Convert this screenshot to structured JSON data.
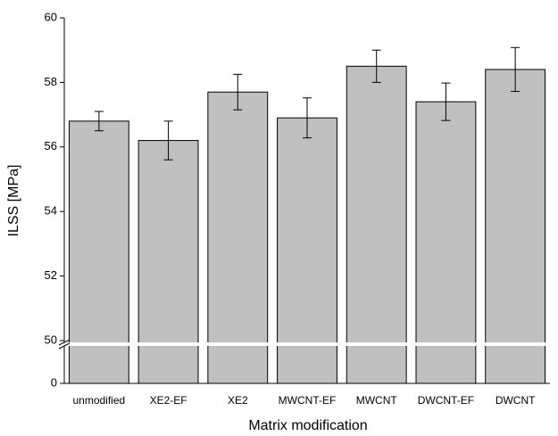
{
  "chart_data": {
    "type": "bar",
    "categories": [
      "unmodified",
      "XE2-EF",
      "XE2",
      "MWCNT-EF",
      "MWCNT",
      "DWCNT-EF",
      "DWCNT"
    ],
    "values": [
      56.8,
      56.2,
      57.7,
      56.9,
      58.5,
      57.4,
      58.4
    ],
    "errors": [
      0.3,
      0.6,
      0.55,
      0.62,
      0.5,
      0.58,
      0.68
    ],
    "color": "#c0c0c0",
    "x_label": "Matrix modification",
    "y_label": "ILSS [MPa]",
    "ylim": [
      0,
      60
    ],
    "yticks": [
      0,
      50,
      52,
      54,
      56,
      58,
      60
    ],
    "ybreak": 50
  }
}
